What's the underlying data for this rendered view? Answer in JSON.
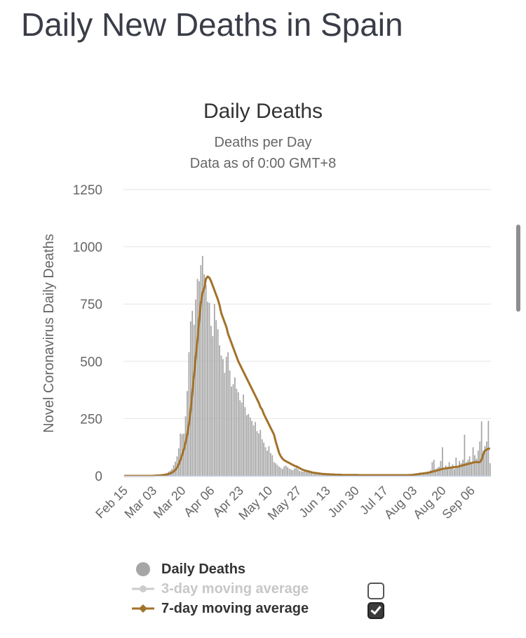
{
  "page": {
    "title": "Daily New Deaths in Spain"
  },
  "chart_data": {
    "type": "bar",
    "title": "Daily Deaths",
    "subtitle": "Deaths per Day",
    "subtitle2": "Data as of 0:00 GMT+8",
    "ylabel": "Novel Coronavirus Daily Deaths",
    "xlabel": "",
    "ylim": [
      0,
      1250
    ],
    "yticks": [
      0,
      250,
      500,
      750,
      1000,
      1250
    ],
    "grid": true,
    "legend_position": "bottom",
    "xticks": [
      "Feb 15",
      "Mar 03",
      "Mar 20",
      "Apr 06",
      "Apr 23",
      "May 10",
      "May 27",
      "Jun 13",
      "Jun 30",
      "Jul 17",
      "Aug 03",
      "Aug 20",
      "Sep 06"
    ],
    "x_start": "Feb 15",
    "x_end": "Sep 19",
    "bar_values": [
      0,
      0,
      0,
      0,
      0,
      0,
      0,
      0,
      0,
      0,
      0,
      0,
      0,
      0,
      0,
      0,
      0,
      0,
      1,
      2,
      2,
      3,
      5,
      8,
      6,
      12,
      18,
      23,
      30,
      47,
      62,
      85,
      120,
      185,
      182,
      185,
      260,
      370,
      540,
      675,
      720,
      660,
      770,
      860,
      850,
      920,
      960,
      880,
      835,
      760,
      755,
      655,
      610,
      750,
      680,
      640,
      570,
      525,
      510,
      450,
      520,
      540,
      460,
      390,
      400,
      430,
      380,
      365,
      330,
      320,
      355,
      300,
      265,
      270,
      255,
      240,
      220,
      235,
      195,
      185,
      200,
      160,
      145,
      125,
      110,
      130,
      100,
      90,
      60,
      55,
      48,
      40,
      35,
      30,
      42,
      45,
      38,
      32,
      28,
      25,
      32,
      36,
      30,
      22,
      20,
      18,
      22,
      25,
      18,
      15,
      12,
      10,
      14,
      16,
      12,
      8,
      8,
      6,
      7,
      9,
      6,
      5,
      4,
      5,
      6,
      5,
      4,
      4,
      3,
      3,
      4,
      3,
      3,
      3,
      4,
      5,
      3,
      3,
      2,
      2,
      2,
      3,
      4,
      3,
      3,
      2,
      2,
      3,
      3,
      2,
      2,
      2,
      2,
      3,
      2,
      2,
      2,
      1,
      2,
      2,
      3,
      2,
      2,
      1,
      1,
      2,
      2,
      3,
      4,
      3,
      6,
      5,
      8,
      12,
      15,
      5,
      8,
      12,
      18,
      20,
      25,
      60,
      70,
      30,
      35,
      40,
      65,
      125,
      30,
      45,
      35,
      60,
      40,
      50,
      30,
      80,
      40,
      65,
      55,
      70,
      180,
      60,
      70,
      85,
      60,
      125,
      90,
      75,
      110,
      150,
      238,
      110,
      130,
      150,
      240,
      55
    ],
    "ma7_values": [
      0,
      0,
      0,
      0,
      0,
      0,
      0,
      0,
      0,
      0,
      0,
      0,
      0,
      0,
      0,
      0,
      0,
      0,
      1,
      1,
      2,
      2,
      3,
      4,
      5,
      6,
      8,
      11,
      14,
      19,
      26,
      36,
      51,
      70,
      92,
      115,
      145,
      180,
      225,
      285,
      365,
      440,
      520,
      590,
      680,
      755,
      800,
      820,
      860,
      870,
      865,
      850,
      830,
      810,
      790,
      770,
      745,
      710,
      690,
      670,
      650,
      620,
      600,
      580,
      560,
      540,
      520,
      500,
      485,
      470,
      455,
      440,
      425,
      410,
      395,
      380,
      365,
      350,
      335,
      320,
      300,
      290,
      270,
      255,
      240,
      225,
      210,
      195,
      180,
      150,
      125,
      100,
      85,
      75,
      68,
      64,
      60,
      56,
      52,
      48,
      44,
      42,
      38,
      34,
      30,
      26,
      24,
      22,
      20,
      18,
      16,
      14,
      13,
      12,
      11,
      10,
      9,
      8,
      8,
      7,
      7,
      6,
      6,
      6,
      5,
      5,
      5,
      5,
      4,
      4,
      4,
      4,
      4,
      4,
      4,
      4,
      4,
      4,
      3,
      3,
      3,
      3,
      3,
      3,
      3,
      3,
      3,
      3,
      3,
      3,
      3,
      3,
      3,
      3,
      3,
      3,
      3,
      3,
      3,
      3,
      3,
      3,
      3,
      3,
      3,
      3,
      3,
      3,
      4,
      4,
      5,
      6,
      7,
      8,
      9,
      10,
      11,
      12,
      13,
      14,
      16,
      18,
      20,
      22,
      24,
      26,
      28,
      30,
      32,
      33,
      34,
      35,
      36,
      37,
      38,
      39,
      40,
      42,
      44,
      46,
      48,
      50,
      52,
      54,
      56,
      58,
      60,
      60,
      60,
      60,
      70,
      95,
      110,
      115,
      118,
      120
    ],
    "series": [
      {
        "name": "Daily Deaths",
        "color": "#a6a6a6",
        "visible": true,
        "checkbox": false
      },
      {
        "name": "3-day moving average",
        "color": "#c7c7c7",
        "visible": false,
        "checkbox": true,
        "checked": false
      },
      {
        "name": "7-day moving average",
        "color": "#a2722a",
        "visible": true,
        "checkbox": true,
        "checked": true
      }
    ]
  }
}
